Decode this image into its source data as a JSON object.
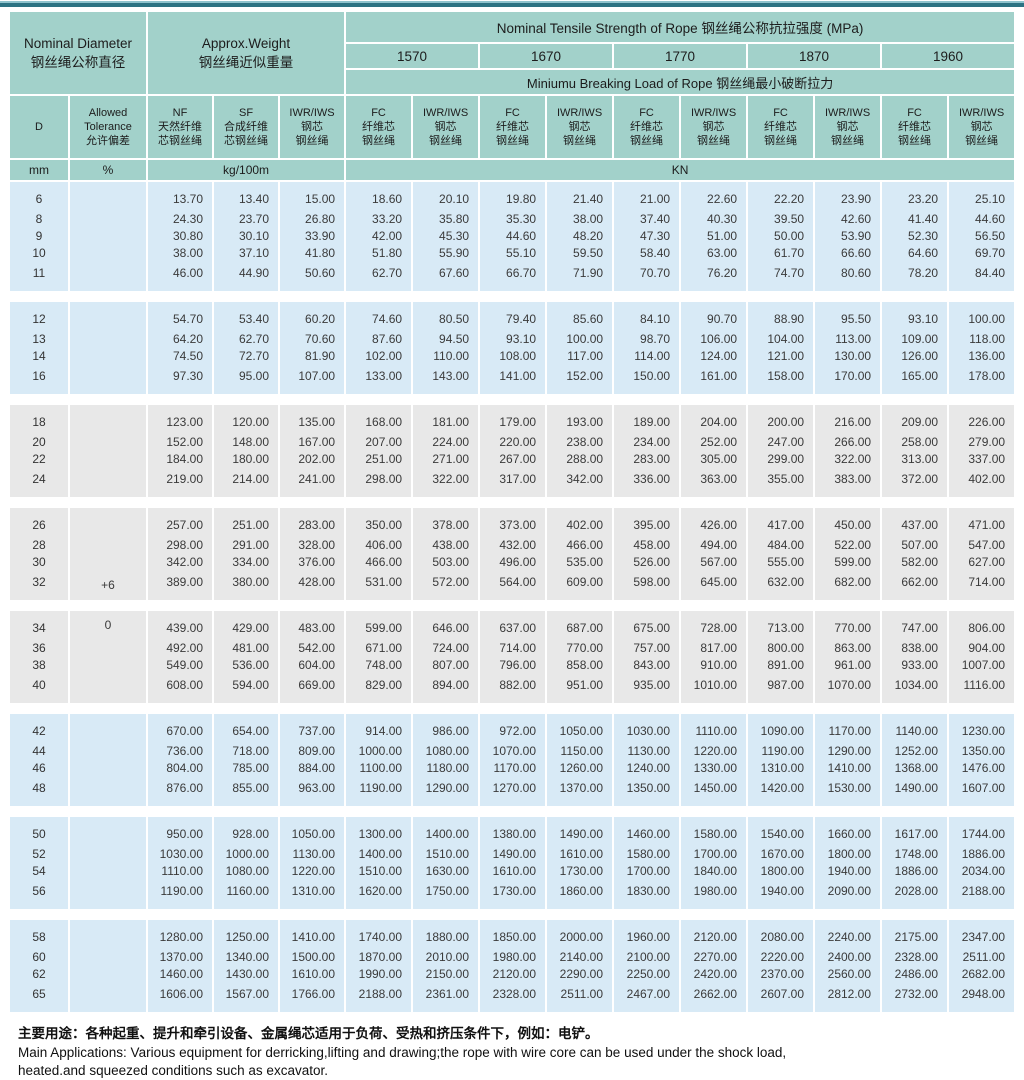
{
  "table": {
    "header": {
      "nominal_diameter": "Nominal Diameter\n钢丝绳公称直径",
      "approx_weight": "Approx.Weight\n钢丝绳近似重量",
      "tensile_strength": "Nominal Tensile Strength of Rope  钢丝绳公称抗拉强度 (MPa)",
      "grades": [
        "1570",
        "1670",
        "1770",
        "1870",
        "1960"
      ],
      "breaking_load": "Miniumu Breaking Load of Rope  钢丝绳最小破断拉力",
      "sub": {
        "d": "D",
        "tolerance": "Allowed\nTolerance\n允许偏差",
        "nf": "NF\n天然纤维\n芯钢丝绳",
        "sf": "SF\n合成纤维\n芯钢丝绳",
        "iwr": "IWR/IWS\n钢芯\n钢丝绳",
        "fc": "FC\n纤维芯\n钢丝绳"
      },
      "units": {
        "mm": "mm",
        "pct": "%",
        "kg": "kg/100m",
        "kn": "KN"
      }
    },
    "tolerance": {
      "line1": "+6",
      "line2": "0"
    },
    "groups": [
      {
        "band": "blue",
        "rows": [
          {
            "d": "6",
            "values": [
              "13.70",
              "13.40",
              "15.00",
              "18.60",
              "20.10",
              "19.80",
              "21.40",
              "21.00",
              "22.60",
              "22.20",
              "23.90",
              "23.20",
              "25.10"
            ]
          },
          {
            "d": "8",
            "values": [
              "24.30",
              "23.70",
              "26.80",
              "33.20",
              "35.80",
              "35.30",
              "38.00",
              "37.40",
              "40.30",
              "39.50",
              "42.60",
              "41.40",
              "44.60"
            ]
          },
          {
            "d": "9",
            "values": [
              "30.80",
              "30.10",
              "33.90",
              "42.00",
              "45.30",
              "44.60",
              "48.20",
              "47.30",
              "51.00",
              "50.00",
              "53.90",
              "52.30",
              "56.50"
            ]
          },
          {
            "d": "10",
            "values": [
              "38.00",
              "37.10",
              "41.80",
              "51.80",
              "55.90",
              "55.10",
              "59.50",
              "58.40",
              "63.00",
              "61.70",
              "66.60",
              "64.60",
              "69.70"
            ]
          },
          {
            "d": "11",
            "values": [
              "46.00",
              "44.90",
              "50.60",
              "62.70",
              "67.60",
              "66.70",
              "71.90",
              "70.70",
              "76.20",
              "74.70",
              "80.60",
              "78.20",
              "84.40"
            ]
          }
        ]
      },
      {
        "band": "blue",
        "rows": [
          {
            "d": "12",
            "values": [
              "54.70",
              "53.40",
              "60.20",
              "74.60",
              "80.50",
              "79.40",
              "85.60",
              "84.10",
              "90.70",
              "88.90",
              "95.50",
              "93.10",
              "100.00"
            ]
          },
          {
            "d": "13",
            "values": [
              "64.20",
              "62.70",
              "70.60",
              "87.60",
              "94.50",
              "93.10",
              "100.00",
              "98.70",
              "106.00",
              "104.00",
              "113.00",
              "109.00",
              "118.00"
            ]
          },
          {
            "d": "14",
            "values": [
              "74.50",
              "72.70",
              "81.90",
              "102.00",
              "110.00",
              "108.00",
              "117.00",
              "114.00",
              "124.00",
              "121.00",
              "130.00",
              "126.00",
              "136.00"
            ]
          },
          {
            "d": "16",
            "values": [
              "97.30",
              "95.00",
              "107.00",
              "133.00",
              "143.00",
              "141.00",
              "152.00",
              "150.00",
              "161.00",
              "158.00",
              "170.00",
              "165.00",
              "178.00"
            ]
          }
        ]
      },
      {
        "band": "gray",
        "rows": [
          {
            "d": "18",
            "values": [
              "123.00",
              "120.00",
              "135.00",
              "168.00",
              "181.00",
              "179.00",
              "193.00",
              "189.00",
              "204.00",
              "200.00",
              "216.00",
              "209.00",
              "226.00"
            ]
          },
          {
            "d": "20",
            "values": [
              "152.00",
              "148.00",
              "167.00",
              "207.00",
              "224.00",
              "220.00",
              "238.00",
              "234.00",
              "252.00",
              "247.00",
              "266.00",
              "258.00",
              "279.00"
            ]
          },
          {
            "d": "22",
            "values": [
              "184.00",
              "180.00",
              "202.00",
              "251.00",
              "271.00",
              "267.00",
              "288.00",
              "283.00",
              "305.00",
              "299.00",
              "322.00",
              "313.00",
              "337.00"
            ]
          },
          {
            "d": "24",
            "values": [
              "219.00",
              "214.00",
              "241.00",
              "298.00",
              "322.00",
              "317.00",
              "342.00",
              "336.00",
              "363.00",
              "355.00",
              "383.00",
              "372.00",
              "402.00"
            ]
          }
        ]
      },
      {
        "band": "gray",
        "rows": [
          {
            "d": "26",
            "values": [
              "257.00",
              "251.00",
              "283.00",
              "350.00",
              "378.00",
              "373.00",
              "402.00",
              "395.00",
              "426.00",
              "417.00",
              "450.00",
              "437.00",
              "471.00"
            ]
          },
          {
            "d": "28",
            "values": [
              "298.00",
              "291.00",
              "328.00",
              "406.00",
              "438.00",
              "432.00",
              "466.00",
              "458.00",
              "494.00",
              "484.00",
              "522.00",
              "507.00",
              "547.00"
            ]
          },
          {
            "d": "30",
            "values": [
              "342.00",
              "334.00",
              "376.00",
              "466.00",
              "503.00",
              "496.00",
              "535.00",
              "526.00",
              "567.00",
              "555.00",
              "599.00",
              "582.00",
              "627.00"
            ]
          },
          {
            "d": "32",
            "values": [
              "389.00",
              "380.00",
              "428.00",
              "531.00",
              "572.00",
              "564.00",
              "609.00",
              "598.00",
              "645.00",
              "632.00",
              "682.00",
              "662.00",
              "714.00"
            ]
          }
        ]
      },
      {
        "band": "gray",
        "rows": [
          {
            "d": "34",
            "values": [
              "439.00",
              "429.00",
              "483.00",
              "599.00",
              "646.00",
              "637.00",
              "687.00",
              "675.00",
              "728.00",
              "713.00",
              "770.00",
              "747.00",
              "806.00"
            ]
          },
          {
            "d": "36",
            "values": [
              "492.00",
              "481.00",
              "542.00",
              "671.00",
              "724.00",
              "714.00",
              "770.00",
              "757.00",
              "817.00",
              "800.00",
              "863.00",
              "838.00",
              "904.00"
            ]
          },
          {
            "d": "38",
            "values": [
              "549.00",
              "536.00",
              "604.00",
              "748.00",
              "807.00",
              "796.00",
              "858.00",
              "843.00",
              "910.00",
              "891.00",
              "961.00",
              "933.00",
              "1007.00"
            ]
          },
          {
            "d": "40",
            "values": [
              "608.00",
              "594.00",
              "669.00",
              "829.00",
              "894.00",
              "882.00",
              "951.00",
              "935.00",
              "1010.00",
              "987.00",
              "1070.00",
              "1034.00",
              "1116.00"
            ]
          }
        ]
      },
      {
        "band": "blue",
        "rows": [
          {
            "d": "42",
            "values": [
              "670.00",
              "654.00",
              "737.00",
              "914.00",
              "986.00",
              "972.00",
              "1050.00",
              "1030.00",
              "1110.00",
              "1090.00",
              "1170.00",
              "1140.00",
              "1230.00"
            ]
          },
          {
            "d": "44",
            "values": [
              "736.00",
              "718.00",
              "809.00",
              "1000.00",
              "1080.00",
              "1070.00",
              "1150.00",
              "1130.00",
              "1220.00",
              "1190.00",
              "1290.00",
              "1252.00",
              "1350.00"
            ]
          },
          {
            "d": "46",
            "values": [
              "804.00",
              "785.00",
              "884.00",
              "1100.00",
              "1180.00",
              "1170.00",
              "1260.00",
              "1240.00",
              "1330.00",
              "1310.00",
              "1410.00",
              "1368.00",
              "1476.00"
            ]
          },
          {
            "d": "48",
            "values": [
              "876.00",
              "855.00",
              "963.00",
              "1190.00",
              "1290.00",
              "1270.00",
              "1370.00",
              "1350.00",
              "1450.00",
              "1420.00",
              "1530.00",
              "1490.00",
              "1607.00"
            ]
          }
        ]
      },
      {
        "band": "blue",
        "rows": [
          {
            "d": "50",
            "values": [
              "950.00",
              "928.00",
              "1050.00",
              "1300.00",
              "1400.00",
              "1380.00",
              "1490.00",
              "1460.00",
              "1580.00",
              "1540.00",
              "1660.00",
              "1617.00",
              "1744.00"
            ]
          },
          {
            "d": "52",
            "values": [
              "1030.00",
              "1000.00",
              "1130.00",
              "1400.00",
              "1510.00",
              "1490.00",
              "1610.00",
              "1580.00",
              "1700.00",
              "1670.00",
              "1800.00",
              "1748.00",
              "1886.00"
            ]
          },
          {
            "d": "54",
            "values": [
              "1110.00",
              "1080.00",
              "1220.00",
              "1510.00",
              "1630.00",
              "1610.00",
              "1730.00",
              "1700.00",
              "1840.00",
              "1800.00",
              "1940.00",
              "1886.00",
              "2034.00"
            ]
          },
          {
            "d": "56",
            "values": [
              "1190.00",
              "1160.00",
              "1310.00",
              "1620.00",
              "1750.00",
              "1730.00",
              "1860.00",
              "1830.00",
              "1980.00",
              "1940.00",
              "2090.00",
              "2028.00",
              "2188.00"
            ]
          }
        ]
      },
      {
        "band": "blue",
        "rows": [
          {
            "d": "58",
            "values": [
              "1280.00",
              "1250.00",
              "1410.00",
              "1740.00",
              "1880.00",
              "1850.00",
              "2000.00",
              "1960.00",
              "2120.00",
              "2080.00",
              "2240.00",
              "2175.00",
              "2347.00"
            ]
          },
          {
            "d": "60",
            "values": [
              "1370.00",
              "1340.00",
              "1500.00",
              "1870.00",
              "2010.00",
              "1980.00",
              "2140.00",
              "2100.00",
              "2270.00",
              "2220.00",
              "2400.00",
              "2328.00",
              "2511.00"
            ]
          },
          {
            "d": "62",
            "values": [
              "1460.00",
              "1430.00",
              "1610.00",
              "1990.00",
              "2150.00",
              "2120.00",
              "2290.00",
              "2250.00",
              "2420.00",
              "2370.00",
              "2560.00",
              "2486.00",
              "2682.00"
            ]
          },
          {
            "d": "65",
            "values": [
              "1606.00",
              "1567.00",
              "1766.00",
              "2188.00",
              "2361.00",
              "2328.00",
              "2511.00",
              "2467.00",
              "2662.00",
              "2607.00",
              "2812.00",
              "2732.00",
              "2948.00"
            ]
          }
        ]
      }
    ]
  },
  "footer": {
    "zh": "主要用途：各种起重、提升和牵引设备、金属绳芯适用于负荷、受热和挤压条件下，例如：电铲。",
    "en": "Main Applications: Various equipment for derricking,lifting and drawing;the rope with wire core can be used under the shock load,\nheated.and squeezed conditions such as excavator."
  },
  "colors": {
    "header_teal": "#a2d1ca",
    "band_blue": "#d8eaf6",
    "band_gray": "#e8e8e8",
    "top_bar": "#2c7383"
  }
}
